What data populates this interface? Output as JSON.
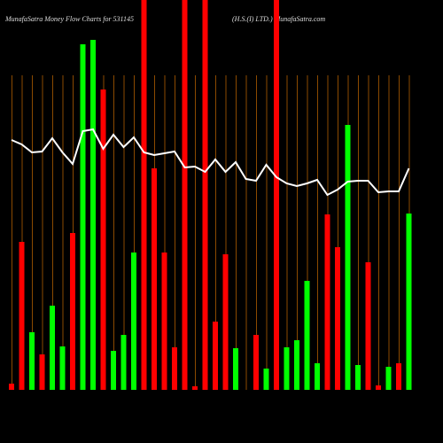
{
  "chart_data": {
    "type": "bar",
    "title": "MunafaSatra  Money Flow  Charts for 531145",
    "subtitle": "(H.S.(I) LTD.) MunafaSatra.com",
    "categories": [
      null,
      null,
      null,
      null,
      null,
      null,
      null,
      null,
      null,
      null,
      null,
      null,
      null,
      null,
      null,
      null,
      null,
      null,
      null,
      null,
      null,
      null,
      null,
      null,
      null,
      null,
      null,
      null,
      null,
      null,
      null,
      null,
      null,
      null,
      null,
      null,
      null,
      null,
      null,
      null
    ],
    "bars": {
      "values": [
        7,
        167,
        65,
        40,
        95,
        49,
        177,
        390,
        395,
        339,
        44,
        62,
        155,
        440,
        250,
        155,
        48,
        440,
        4,
        440,
        77,
        153,
        47,
        0,
        62,
        24,
        440,
        48,
        56,
        123,
        30,
        198,
        161,
        299,
        28,
        144,
        5,
        26,
        30,
        199
      ],
      "colors": [
        "#ff0000",
        "#ff0000",
        "#00ff00",
        "#ff0000",
        "#00ff00",
        "#00ff00",
        "#ff0000",
        "#00ff00",
        "#00ff00",
        "#ff0000",
        "#00ff00",
        "#00ff00",
        "#00ff00",
        "#ff0000",
        "#ff0000",
        "#ff0000",
        "#ff0000",
        "#ff0000",
        "#ff0000",
        "#ff0000",
        "#ff0000",
        "#ff0000",
        "#00ff00",
        "#ff0000",
        "#ff0000",
        "#00ff00",
        "#ff0000",
        "#00ff00",
        "#00ff00",
        "#00ff00",
        "#00ff00",
        "#ff0000",
        "#ff0000",
        "#00ff00",
        "#00ff00",
        "#ff0000",
        "#ff0000",
        "#00ff00",
        "#ff0000",
        "#00ff00"
      ]
    },
    "line": {
      "color": "#ffffff",
      "values": [
        282,
        277,
        268,
        269,
        284,
        268,
        255,
        292,
        294,
        272,
        288,
        274,
        285,
        268,
        265,
        267,
        269,
        251,
        252,
        246,
        260,
        246,
        257,
        238,
        236,
        254,
        240,
        233,
        230,
        233,
        237,
        220,
        226,
        235,
        236,
        236,
        223,
        224,
        224,
        250
      ]
    },
    "ylim": [
      0,
      440
    ],
    "grid": true,
    "grid_color": "#8b4a00"
  }
}
